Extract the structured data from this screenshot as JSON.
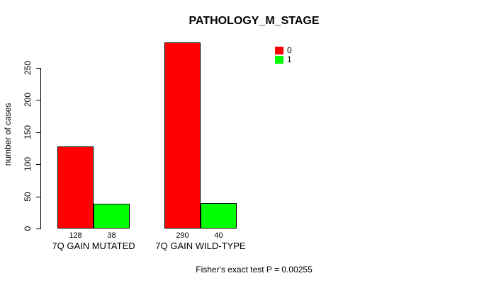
{
  "chart_data": {
    "type": "bar",
    "title": "PATHOLOGY_M_STAGE",
    "xlabel": "",
    "ylabel": "number of cases",
    "categories": [
      "7Q GAIN MUTATED",
      "7Q GAIN WILD-TYPE"
    ],
    "series": [
      {
        "name": "0",
        "color": "#FF0000",
        "values": [
          128,
          290
        ]
      },
      {
        "name": "1",
        "color": "#00FF00",
        "values": [
          38,
          40
        ]
      }
    ],
    "value_labels": [
      [
        "128",
        "38"
      ],
      [
        "290",
        "40"
      ]
    ],
    "yticks": [
      0,
      50,
      100,
      150,
      200,
      250
    ],
    "ylim": [
      0,
      295
    ],
    "grid": false,
    "legend_position": "top-right",
    "bar_border_color": "#000000",
    "background_color": "#FFFFFF",
    "annotation": "Fisher's exact test P = 0.00255"
  }
}
